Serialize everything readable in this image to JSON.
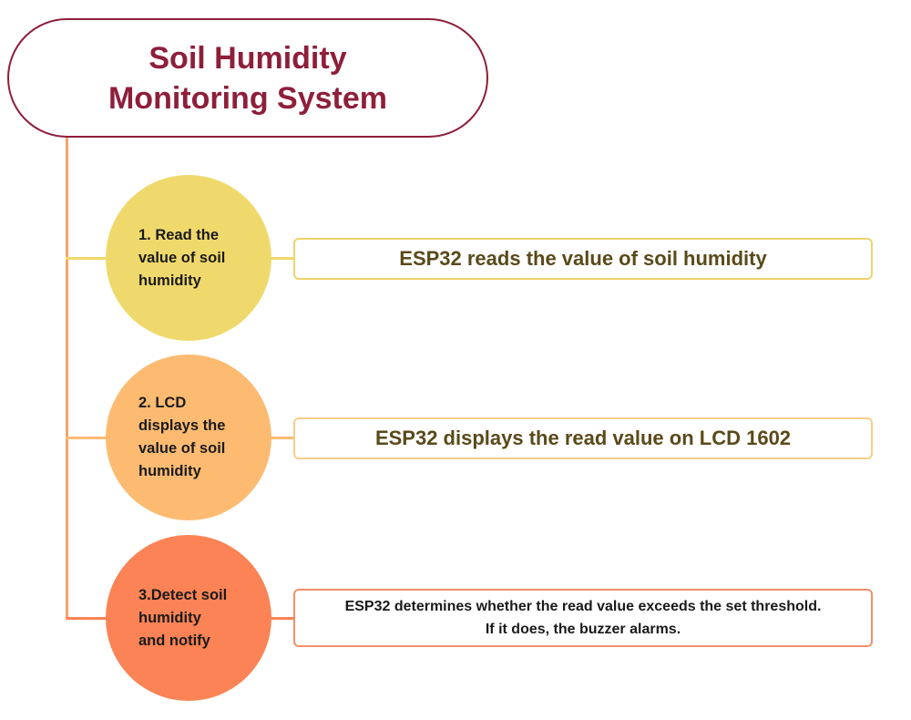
{
  "title": {
    "line1": "Soil Humidity",
    "line2": "Monitoring System"
  },
  "colors": {
    "title": "#8e1f3a",
    "trunk": "#f4a46a",
    "step1_fill": "#f0d96c",
    "step1_border": "#efd36a",
    "step2_fill": "#fdbb72",
    "step2_border": "#f9ce8a",
    "step3_fill": "#fb8355",
    "step3_border": "#f68e6c"
  },
  "steps": [
    {
      "label": "1. Read the\nvalue of soil\nhumidity",
      "detail_lines": [
        "ESP32 reads the value of soil humidity"
      ]
    },
    {
      "label": "2. LCD\ndisplays the\nvalue of soil\nhumidity",
      "detail_lines": [
        "ESP32 displays the read value on LCD 1602"
      ]
    },
    {
      "label": "3.Detect soil\nhumidity\nand notify",
      "detail_lines": [
        "ESP32 determines whether the read value exceeds the set threshold.",
        "If it does, the buzzer alarms."
      ]
    }
  ]
}
